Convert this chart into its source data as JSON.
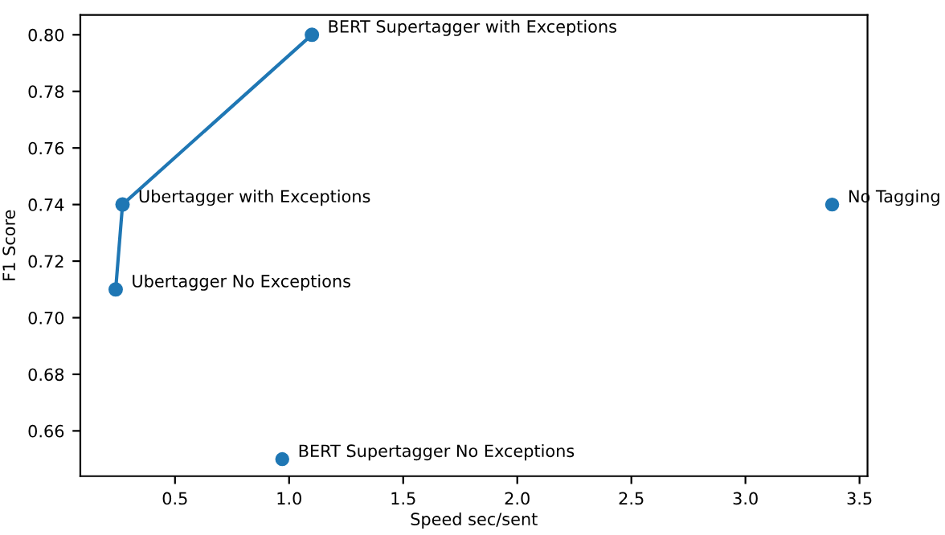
{
  "chart_data": {
    "type": "scatter",
    "xlabel": "Speed sec/sent",
    "ylabel": "F1 Score",
    "series": [
      {
        "type": "line",
        "color": "#1f77b4",
        "marker": "circle",
        "x": [
          0.24,
          0.27,
          1.1
        ],
        "values": [
          0.71,
          0.74,
          0.8
        ]
      },
      {
        "color": "#1f77b4",
        "marker": "circle",
        "x": [
          0.97,
          3.38
        ],
        "values": [
          0.65,
          0.74
        ]
      }
    ],
    "annotations": [
      {
        "text": "BERT Supertagger with Exceptions",
        "x": 1.1,
        "y": 0.8
      },
      {
        "text": "Ubertagger with Exceptions",
        "x": 0.27,
        "y": 0.74
      },
      {
        "text": "Ubertagger No Exceptions",
        "x": 0.24,
        "y": 0.71
      },
      {
        "text": "BERT Supertagger No Exceptions",
        "x": 0.97,
        "y": 0.65
      },
      {
        "text": "No Tagging",
        "x": 3.38,
        "y": 0.74
      }
    ],
    "xlim": [
      0.085,
      3.535
    ],
    "ylim": [
      0.644,
      0.807
    ],
    "xticks": [
      0.5,
      {
        "value": 1,
        "label": "1.0"
      },
      1.5,
      {
        "value": 2,
        "label": "2.0"
      },
      2.5,
      {
        "value": 3,
        "label": "3.0"
      },
      3.5
    ],
    "yticks": [
      0.66,
      0.68,
      {
        "value": 0.7,
        "label": "0.70"
      },
      0.72,
      0.74,
      0.76,
      0.78,
      {
        "value": 0.8,
        "label": "0.80"
      }
    ],
    "grid": false,
    "legend": false
  }
}
